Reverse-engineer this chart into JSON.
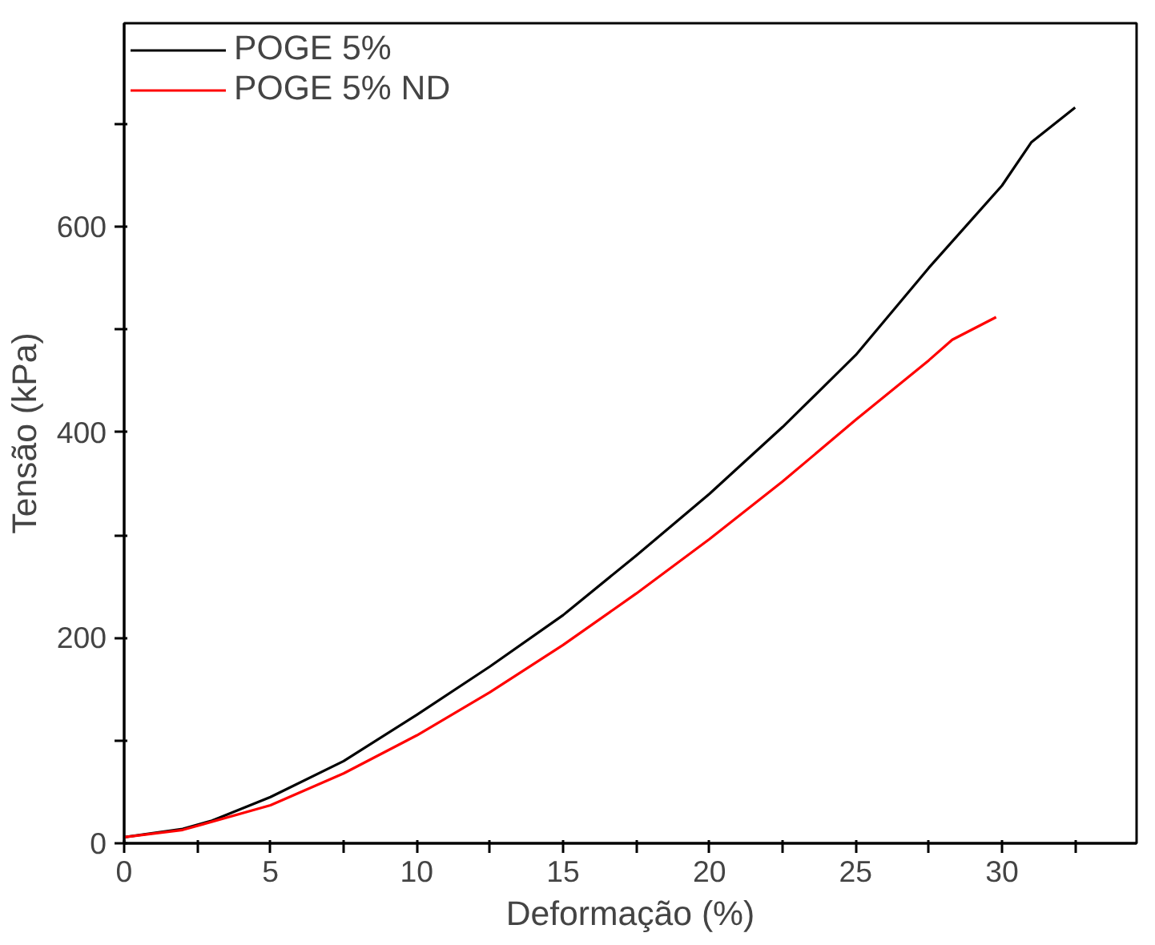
{
  "chart_data": {
    "type": "line",
    "xlabel": "Deformação (%)",
    "ylabel": "Tensão (kPa)",
    "xlim": [
      0,
      34.6
    ],
    "ylim": [
      0,
      798
    ],
    "xticks": [
      0,
      {
        "value": 2.5,
        "label": null
      },
      5,
      {
        "value": 7.5,
        "label": null
      },
      10,
      {
        "value": 12.5,
        "label": null
      },
      15,
      {
        "value": 17.5,
        "label": null
      },
      20,
      {
        "value": 22.5,
        "label": null
      },
      25,
      {
        "value": 27.5,
        "label": null
      },
      30,
      {
        "value": 32.5,
        "label": null
      }
    ],
    "yticks": [
      0,
      {
        "value": 100,
        "label": null
      },
      200,
      {
        "value": 300,
        "label": null
      },
      400,
      {
        "value": 500,
        "label": null
      },
      600,
      {
        "value": 700,
        "label": null
      }
    ],
    "grid": false,
    "legend": "top left",
    "marker": "none",
    "line_style": "solid",
    "series": [
      {
        "name": "POGE 5%",
        "color": "#000000",
        "x": [
          0,
          2,
          3,
          5,
          7.5,
          10,
          12.5,
          15,
          17.5,
          20,
          22.5,
          25,
          27.5,
          30,
          31,
          32.5
        ],
        "values": [
          6,
          14,
          22,
          45,
          80,
          125,
          172,
          222,
          280,
          340,
          405,
          475,
          560,
          640,
          682,
          716
        ]
      },
      {
        "name": "POGE 5% ND",
        "color": "#ff0000",
        "x": [
          0,
          2,
          5,
          7.5,
          10,
          12.5,
          15,
          17.5,
          20,
          22.5,
          25,
          27.5,
          28.3,
          29.8
        ],
        "values": [
          6,
          13,
          37,
          68,
          105,
          147,
          193,
          243,
          296,
          352,
          412,
          470,
          490,
          512
        ]
      }
    ]
  }
}
